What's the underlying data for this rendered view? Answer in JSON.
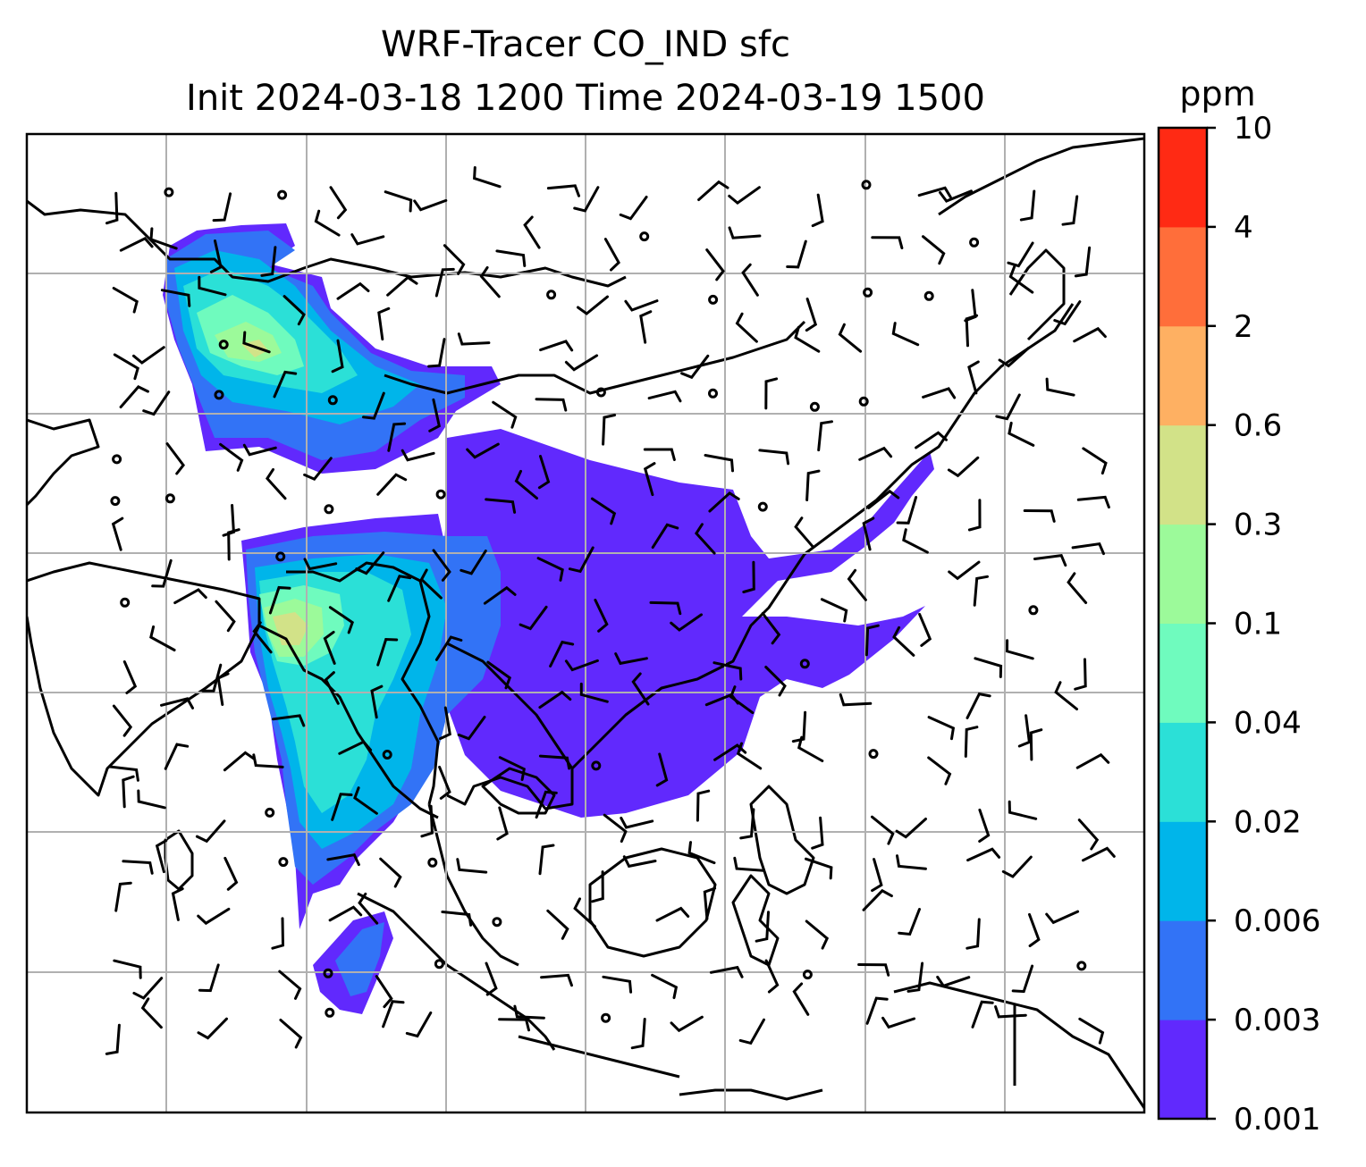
{
  "title": {
    "line1": "WRF-Tracer CO_IND sfc",
    "line2": "Init 2024-03-18 1200 Time 2024-03-19 1500"
  },
  "colorbar": {
    "unit": "ppm",
    "ticks": [
      "0.001",
      "0.003",
      "0.006",
      "0.02",
      "0.04",
      "0.1",
      "0.3",
      "0.6",
      "2",
      "4",
      "10"
    ],
    "colors": [
      "#6129fd",
      "#3273f6",
      "#00b5ea",
      "#2be0d7",
      "#6ffbbe",
      "#9cfa9a",
      "#d2e288",
      "#feb062",
      "#ff6e3a",
      "#ff2a14"
    ]
  },
  "map": {
    "gridlines": "on",
    "overlay": "wind barbs",
    "colors": {
      "land_outline": "#000000",
      "grid": "#b0b0b0",
      "very_low": "#6129fd",
      "low": "#3273f6",
      "mid_low": "#00b5ea",
      "mid": "#2be0d7",
      "mid_high": "#6ffbbe",
      "high": "#9cfa9a",
      "peak": "#d2e288"
    }
  }
}
